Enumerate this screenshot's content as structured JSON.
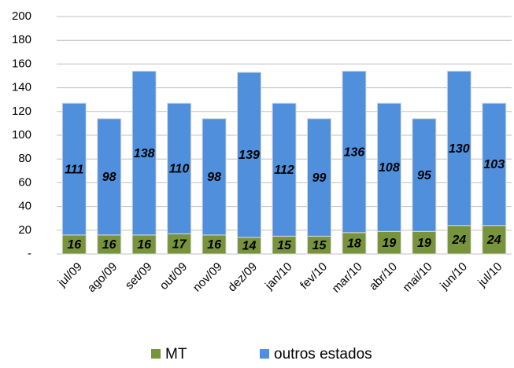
{
  "chart_data": {
    "type": "stacked-bar",
    "categories": [
      "jul/09",
      "ago/09",
      "set/09",
      "out/09",
      "nov/09",
      "dez/09",
      "jan/10",
      "fev/10",
      "mar/10",
      "abr/10",
      "mai/10",
      "jun/10",
      "jul/10"
    ],
    "series": [
      {
        "name": "MT",
        "color": "#77933c",
        "values": [
          16,
          16,
          16,
          17,
          16,
          14,
          15,
          15,
          18,
          19,
          19,
          24,
          24
        ]
      },
      {
        "name": "outros estados",
        "color": "#4f8fdc",
        "values": [
          111,
          98,
          138,
          110,
          98,
          139,
          112,
          99,
          136,
          108,
          95,
          130,
          103
        ]
      }
    ],
    "ylim": [
      0,
      200
    ],
    "yticks": [
      {
        "value": 0,
        "label": "-"
      },
      20,
      40,
      60,
      80,
      100,
      120,
      140,
      160,
      180,
      200
    ],
    "grid": true
  }
}
